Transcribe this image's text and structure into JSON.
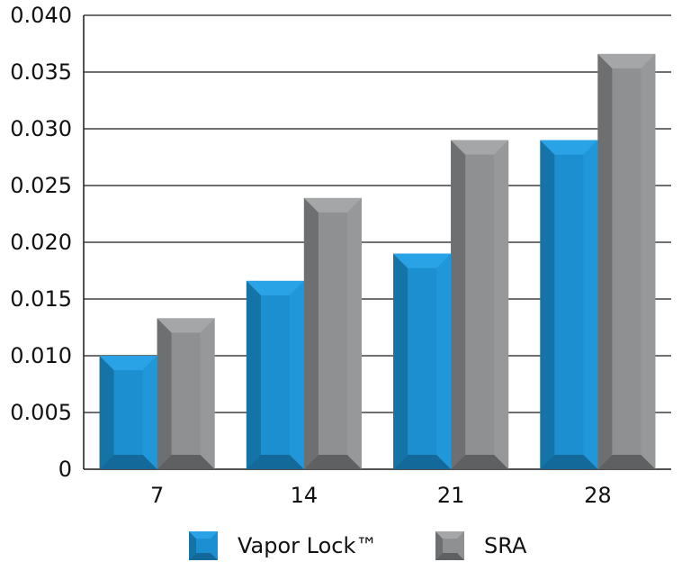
{
  "chart_data": {
    "type": "bar",
    "categories": [
      "7",
      "14",
      "21",
      "28"
    ],
    "series": [
      {
        "name": "Vapor Lock™",
        "values": [
          0.01,
          0.0166,
          0.019,
          0.029
        ],
        "color": "#1b8fd0"
      },
      {
        "name": "SRA",
        "values": [
          0.0133,
          0.0239,
          0.029,
          0.0366
        ],
        "color": "#8f9091"
      }
    ],
    "yticks": [
      "0",
      "0.005",
      "0.010",
      "0.015",
      "0.020",
      "0.025",
      "0.030",
      "0.035",
      "0.040"
    ],
    "ylim": [
      0,
      0.04
    ],
    "grid": true,
    "legend_position": "bottom"
  }
}
